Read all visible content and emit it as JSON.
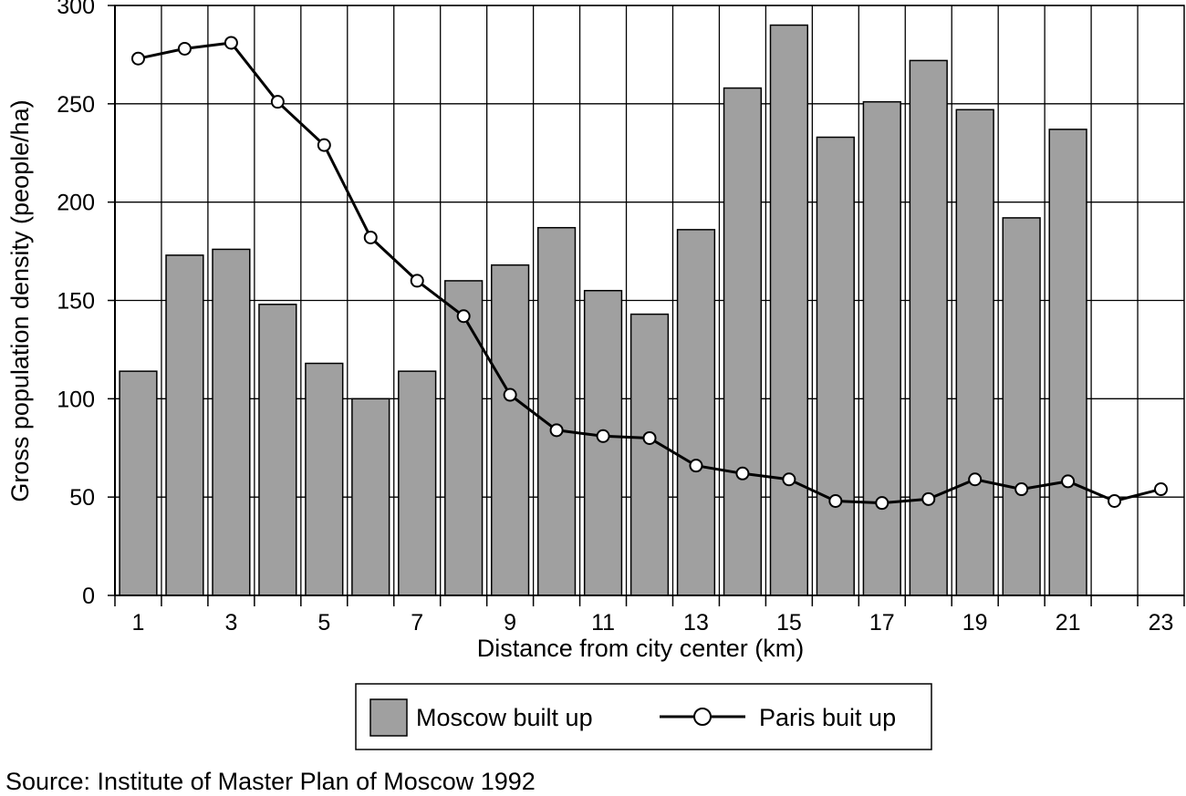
{
  "chart_data": {
    "type": "bar",
    "title": "",
    "xlabel": "Distance from city center (km)",
    "ylabel": "Gross population density (people/ha)",
    "ylim": [
      0,
      300
    ],
    "yticks": [
      0,
      50,
      100,
      150,
      200,
      250,
      300
    ],
    "xlim": [
      0.5,
      23.5
    ],
    "xticks_labeled": [
      1,
      3,
      5,
      7,
      9,
      11,
      13,
      15,
      17,
      19,
      21,
      23
    ],
    "grid": true,
    "legend_placement": "bottom-center",
    "series": [
      {
        "name": "Moscow built up",
        "type": "bar",
        "color": "#a0a0a0",
        "x": [
          1,
          2,
          3,
          4,
          5,
          6,
          7,
          8,
          9,
          10,
          11,
          12,
          13,
          14,
          15,
          16,
          17,
          18,
          19,
          20,
          21
        ],
        "values": [
          114,
          173,
          176,
          148,
          118,
          100,
          114,
          160,
          168,
          187,
          155,
          143,
          186,
          258,
          290,
          233,
          251,
          272,
          247,
          192,
          237
        ]
      },
      {
        "name": "Paris buit up",
        "type": "line",
        "color": "#000000",
        "marker": "open-circle",
        "x": [
          1,
          2,
          3,
          4,
          5,
          6,
          7,
          8,
          9,
          10,
          11,
          12,
          13,
          14,
          15,
          16,
          17,
          18,
          19,
          20,
          21,
          22,
          23
        ],
        "values": [
          273,
          278,
          281,
          251,
          229,
          182,
          160,
          142,
          102,
          84,
          81,
          80,
          66,
          62,
          59,
          48,
          47,
          49,
          59,
          54,
          58,
          48,
          54
        ]
      }
    ]
  },
  "source": "Source: Institute of Master Plan of Moscow 1992"
}
